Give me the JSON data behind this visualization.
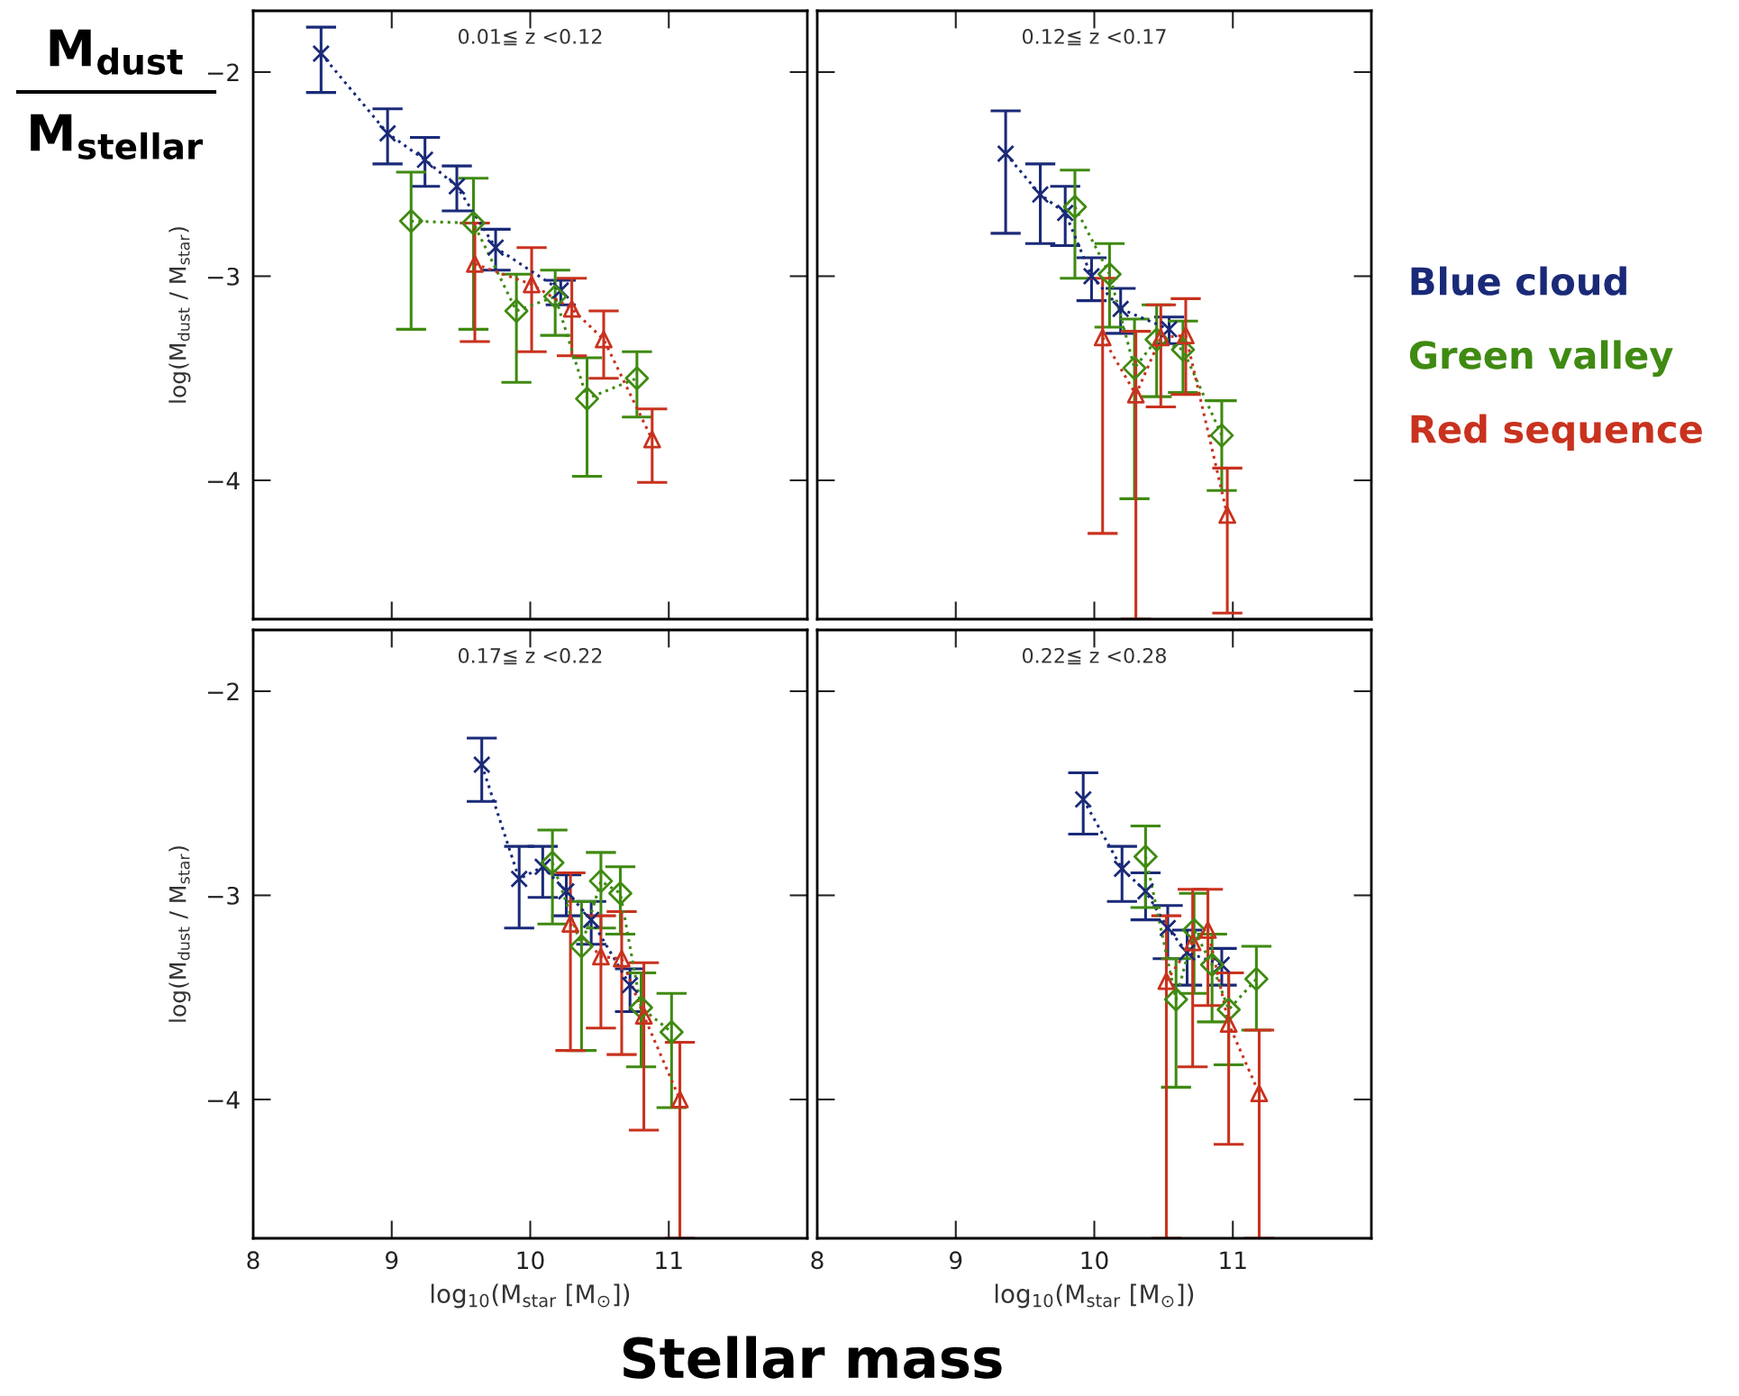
{
  "chart_data": [
    {
      "type": "line",
      "title": "0.01≦ z <0.12",
      "ylabel": "log(M$_{dust}$ / M$_{star}$)",
      "annotations": [
        "M$_{dust}$",
        "M$_{stellar}$"
      ],
      "xlim": [
        8,
        12
      ],
      "xticks": [
        8,
        9,
        10,
        11
      ],
      "ylim": [
        -4.68,
        -1.7
      ],
      "yticks": [
        -2,
        -3,
        -4
      ],
      "tick_labels": "y",
      "line_style": "dotted",
      "grid": false,
      "legend": false,
      "series": [
        {
          "color": "#1a2a78",
          "marker": "cross",
          "x": [
            8.49,
            8.97,
            9.24,
            9.47,
            9.75,
            10.22
          ],
          "values": [
            -1.91,
            -2.3,
            -2.43,
            -2.56,
            -2.86,
            -3.07
          ],
          "errors": [
            [
              -2.1,
              -1.78
            ],
            [
              -2.45,
              -2.18
            ],
            [
              -2.56,
              -2.32
            ],
            [
              -2.68,
              -2.46
            ],
            [
              -2.97,
              -2.77
            ],
            [
              -3.14,
              -3.02
            ]
          ]
        },
        {
          "color": "#3f8a12",
          "marker": "diamond",
          "x": [
            9.14,
            9.59,
            9.9,
            10.18,
            10.41,
            10.77
          ],
          "values": [
            -2.73,
            -2.74,
            -3.17,
            -3.1,
            -3.6,
            -3.5
          ],
          "errors": [
            [
              -3.26,
              -2.49
            ],
            [
              -3.26,
              -2.52
            ],
            [
              -3.52,
              -2.99
            ],
            [
              -3.29,
              -2.97
            ],
            [
              -3.98,
              -3.4
            ],
            [
              -3.69,
              -3.37
            ]
          ]
        },
        {
          "color": "#c8321e",
          "marker": "triangle",
          "x": [
            9.6,
            10.01,
            10.3,
            10.53,
            10.88
          ],
          "values": [
            -2.94,
            -3.04,
            -3.16,
            -3.31,
            -3.8
          ],
          "errors": [
            [
              -3.32,
              -2.74
            ],
            [
              -3.37,
              -2.86
            ],
            [
              -3.39,
              -3.01
            ],
            [
              -3.5,
              -3.17
            ],
            [
              -4.01,
              -3.65
            ]
          ]
        }
      ]
    },
    {
      "type": "line",
      "title": "0.12≦ z <0.17",
      "xlim": [
        8,
        12
      ],
      "xticks": [
        8,
        9,
        10,
        11
      ],
      "ylim": [
        -4.68,
        -1.7
      ],
      "yticks": [
        -2,
        -3,
        -4
      ],
      "tick_labels": false,
      "line_style": "dotted",
      "grid": false,
      "legend": "right",
      "series": [
        {
          "name": "Blue cloud",
          "color": "#1a2a78",
          "marker": "cross",
          "x": [
            9.36,
            9.61,
            9.79,
            9.98,
            10.19,
            10.54
          ],
          "values": [
            -2.4,
            -2.6,
            -2.69,
            -3.0,
            -3.16,
            -3.26
          ],
          "errors": [
            [
              -2.79,
              -2.19
            ],
            [
              -2.84,
              -2.45
            ],
            [
              -2.85,
              -2.56
            ],
            [
              -3.12,
              -2.91
            ],
            [
              -3.28,
              -3.06
            ],
            [
              -3.33,
              -3.2
            ]
          ]
        },
        {
          "name": "Green valley",
          "color": "#3f8a12",
          "marker": "diamond",
          "x": [
            9.86,
            10.11,
            10.29,
            10.45,
            10.64,
            10.92
          ],
          "values": [
            -2.66,
            -2.99,
            -3.45,
            -3.31,
            -3.36,
            -3.78
          ],
          "errors": [
            [
              -3.01,
              -2.48
            ],
            [
              -3.25,
              -2.84
            ],
            [
              -4.09,
              -3.21
            ],
            [
              -3.59,
              -3.14
            ],
            [
              -3.57,
              -3.22
            ],
            [
              -4.05,
              -3.61
            ]
          ]
        },
        {
          "name": "Red sequence",
          "color": "#c8321e",
          "marker": "triangle",
          "x": [
            10.06,
            10.3,
            10.48,
            10.66,
            10.96
          ],
          "values": [
            -3.3,
            -3.58,
            -3.3,
            -3.29,
            -4.17
          ],
          "errors": [
            [
              -4.26,
              -3.01
            ],
            [
              -4.68,
              -3.27
            ],
            [
              -3.64,
              -3.14
            ],
            [
              -3.58,
              -3.11
            ],
            [
              -4.65,
              -3.94
            ]
          ]
        }
      ]
    },
    {
      "type": "line",
      "title": "0.17≦ z <0.22",
      "xlabel": "log$_{10}$(M$_{star}$ [M$_{⊙}$])",
      "ylabel": "log(M$_{dust}$ / M$_{star}$)",
      "annotations": [
        "Stellar mass"
      ],
      "xlim": [
        8,
        12
      ],
      "xticks": [
        8,
        9,
        10,
        11
      ],
      "ylim": [
        -4.68,
        -1.7
      ],
      "yticks": [
        -2,
        -3,
        -4
      ],
      "line_style": "dotted",
      "grid": false,
      "legend": false,
      "series": [
        {
          "color": "#1a2a78",
          "marker": "cross",
          "x": [
            9.65,
            9.92,
            10.09,
            10.26,
            10.44,
            10.72
          ],
          "values": [
            -2.36,
            -2.92,
            -2.86,
            -2.98,
            -3.12,
            -3.44
          ],
          "errors": [
            [
              -2.54,
              -2.23
            ],
            [
              -3.16,
              -2.76
            ],
            [
              -3.01,
              -2.76
            ],
            [
              -3.1,
              -2.9
            ],
            [
              -3.24,
              -3.03
            ],
            [
              -3.57,
              -3.36
            ]
          ]
        },
        {
          "color": "#3f8a12",
          "marker": "diamond",
          "x": [
            10.16,
            10.37,
            10.51,
            10.65,
            10.8,
            11.02
          ],
          "values": [
            -2.84,
            -3.25,
            -2.93,
            -2.99,
            -3.55,
            -3.67
          ],
          "errors": [
            [
              -3.14,
              -2.68
            ],
            [
              -3.76,
              -3.03
            ],
            [
              -3.16,
              -2.79
            ],
            [
              -3.19,
              -2.86
            ],
            [
              -3.84,
              -3.38
            ],
            [
              -4.04,
              -3.48
            ]
          ]
        },
        {
          "color": "#c8321e",
          "marker": "triangle",
          "x": [
            10.29,
            10.51,
            10.66,
            10.82,
            11.08
          ],
          "values": [
            -3.14,
            -3.3,
            -3.31,
            -3.59,
            -4.0
          ],
          "errors": [
            [
              -3.76,
              -2.89
            ],
            [
              -3.65,
              -3.1
            ],
            [
              -3.78,
              -3.08
            ],
            [
              -4.15,
              -3.33
            ],
            [
              -4.68,
              -3.72
            ]
          ]
        }
      ]
    },
    {
      "type": "line",
      "title": "0.22≦ z <0.28",
      "xlabel": "log$_{10}$(M$_{star}$ [M$_{⊙}$])",
      "xlim": [
        8,
        12
      ],
      "xticks": [
        8,
        9,
        10,
        11
      ],
      "ylim": [
        -4.68,
        -1.7
      ],
      "yticks": [
        -2,
        -3,
        -4
      ],
      "tick_labels": "x",
      "line_style": "dotted",
      "grid": false,
      "legend": false,
      "series": [
        {
          "color": "#1a2a78",
          "marker": "cross",
          "x": [
            9.92,
            10.2,
            10.37,
            10.53,
            10.67,
            10.92
          ],
          "values": [
            -2.53,
            -2.87,
            -2.98,
            -3.16,
            -3.28,
            -3.34
          ],
          "errors": [
            [
              -2.7,
              -2.4
            ],
            [
              -3.03,
              -2.76
            ],
            [
              -3.12,
              -2.89
            ],
            [
              -3.31,
              -3.05
            ],
            [
              -3.44,
              -3.17
            ],
            [
              -3.44,
              -3.26
            ]
          ]
        },
        {
          "color": "#3f8a12",
          "marker": "diamond",
          "x": [
            10.37,
            10.59,
            10.72,
            10.85,
            10.97,
            11.17
          ],
          "values": [
            -2.81,
            -3.51,
            -3.17,
            -3.34,
            -3.56,
            -3.41
          ],
          "errors": [
            [
              -3.06,
              -2.66
            ],
            [
              -3.94,
              -3.31
            ],
            [
              -3.48,
              -2.99
            ],
            [
              -3.62,
              -3.19
            ],
            [
              -3.83,
              -3.38
            ],
            [
              -3.66,
              -3.25
            ]
          ]
        },
        {
          "color": "#c8321e",
          "marker": "triangle",
          "x": [
            10.52,
            10.71,
            10.82,
            10.97,
            11.19
          ],
          "values": [
            -3.42,
            -3.23,
            -3.17,
            -3.63,
            -3.97
          ],
          "errors": [
            [
              -4.68,
              -3.1
            ],
            [
              -3.84,
              -2.97
            ],
            [
              -3.54,
              -2.97
            ],
            [
              -4.22,
              -3.38
            ],
            [
              -4.68,
              -3.66
            ]
          ]
        }
      ]
    }
  ]
}
